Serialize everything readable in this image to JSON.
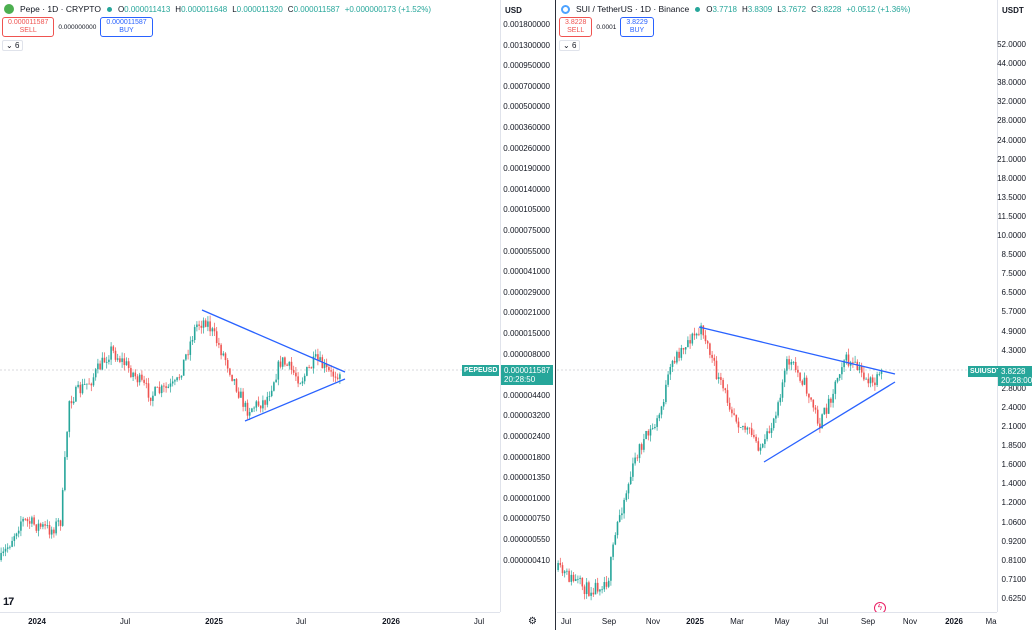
{
  "left": {
    "symbol_title": "Pepe · 1D · CRYPTO",
    "ohlc": {
      "O": "0.000011413",
      "H": "0.000011648",
      "L": "0.000011320",
      "C": "0.000011587",
      "change": "+0.000000173 (+1.52%)"
    },
    "sell_price": "0.000011587",
    "sell_label": "SELL",
    "spread": "0.000000000",
    "buy_price": "0.000011587",
    "buy_label": "BUY",
    "collapse_count": "6",
    "unit": "USD",
    "price_ticks": [
      "0.001800000",
      "0.001300000",
      "0.000950000",
      "0.000700000",
      "0.000500000",
      "0.000360000",
      "0.000260000",
      "0.000190000",
      "0.000140000",
      "0.000105000",
      "0.000075000",
      "0.000055000",
      "0.000041000",
      "0.000029000",
      "0.000021000",
      "0.000015000",
      "0.000008000",
      "0.000006000",
      "0.000004400",
      "0.000003200",
      "0.000002400",
      "0.000001800",
      "0.000001350",
      "0.000001000",
      "0.000000750",
      "0.000000550",
      "0.000000410"
    ],
    "symbol_tag": "PEPEUSD",
    "last_price": "0.000011587",
    "countdown": "20:28:50",
    "time_labels": [
      {
        "text": "2024",
        "bold": true
      },
      {
        "text": "Jul",
        "bold": false
      },
      {
        "text": "2025",
        "bold": true
      },
      {
        "text": "Jul",
        "bold": false
      },
      {
        "text": "2026",
        "bold": true
      },
      {
        "text": "Jul",
        "bold": false
      }
    ],
    "logo": "17"
  },
  "right": {
    "symbol_title": "SUI / TetherUS · 1D · Binance",
    "ohlc": {
      "O": "3.7718",
      "H": "3.8309",
      "L": "3.7672",
      "C": "3.8228",
      "change": "+0.0512 (+1.36%)"
    },
    "sell_price": "3.8228",
    "sell_label": "SELL",
    "spread": "0.0001",
    "buy_price": "3.8229",
    "buy_label": "BUY",
    "collapse_count": "6",
    "unit": "USDT",
    "price_ticks": [
      "52.0000",
      "44.0000",
      "38.0000",
      "32.0000",
      "28.0000",
      "24.0000",
      "21.0000",
      "18.0000",
      "13.5000",
      "11.5000",
      "10.0000",
      "8.5000",
      "7.5000",
      "6.5000",
      "5.7000",
      "4.9000",
      "4.3000",
      "3.2000",
      "2.8000",
      "2.4000",
      "2.1000",
      "1.8500",
      "1.6000",
      "1.4000",
      "1.2000",
      "1.0600",
      "0.9200",
      "0.8100",
      "0.7100",
      "0.6250"
    ],
    "symbol_tag": "SUIUSDT",
    "last_price": "3.8228",
    "countdown": "20:28:00",
    "time_labels": [
      {
        "text": "Jul",
        "bold": false
      },
      {
        "text": "Sep",
        "bold": false
      },
      {
        "text": "Nov",
        "bold": false
      },
      {
        "text": "2025",
        "bold": true
      },
      {
        "text": "Mar",
        "bold": false
      },
      {
        "text": "May",
        "bold": false
      },
      {
        "text": "Jul",
        "bold": false
      },
      {
        "text": "Sep",
        "bold": false
      },
      {
        "text": "Nov",
        "bold": false
      },
      {
        "text": "2026",
        "bold": true
      },
      {
        "text": "Ma",
        "bold": false
      }
    ]
  },
  "colors": {
    "up": "#26a69a",
    "down": "#ef5350",
    "trendline": "#2962ff",
    "accent": "#26a69a"
  }
}
